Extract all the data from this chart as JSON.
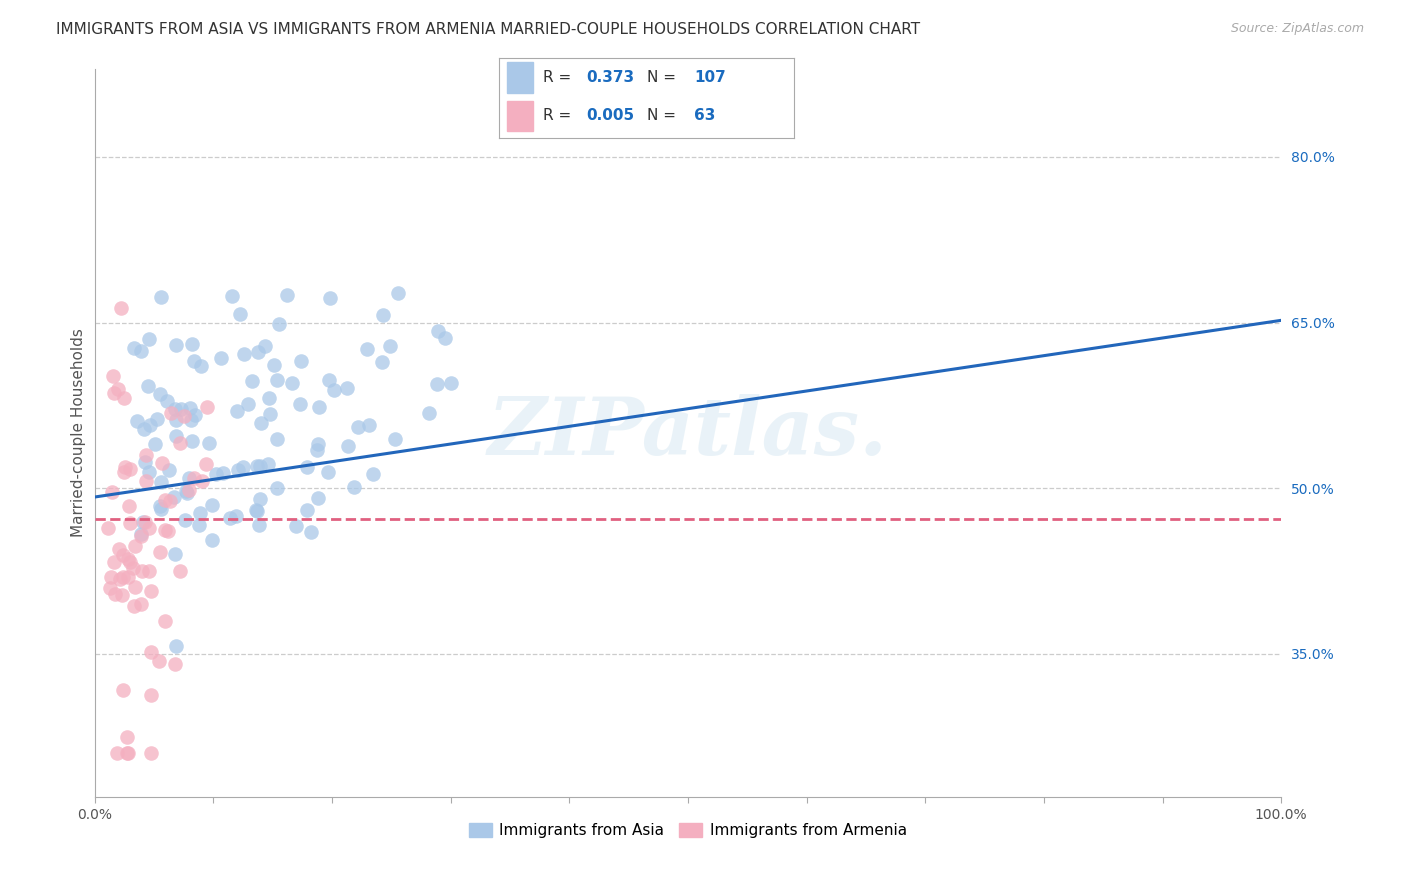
{
  "title": "IMMIGRANTS FROM ASIA VS IMMIGRANTS FROM ARMENIA MARRIED-COUPLE HOUSEHOLDS CORRELATION CHART",
  "source": "Source: ZipAtlas.com",
  "ylabel": "Married-couple Households",
  "series1_label": "Immigrants from Asia",
  "series1_color": "#aac8e8",
  "series1_edge_color": "#aac8e8",
  "series2_label": "Immigrants from Armenia",
  "series2_color": "#f4afc0",
  "series2_edge_color": "#f4afc0",
  "series1_R": "0.373",
  "series1_N": "107",
  "series2_R": "0.005",
  "series2_N": "63",
  "xlim": [
    0.0,
    1.0
  ],
  "ylim": [
    0.22,
    0.88
  ],
  "yticks_right": [
    0.35,
    0.5,
    0.65,
    0.8
  ],
  "ytick_labels_right": [
    "35.0%",
    "50.0%",
    "65.0%",
    "80.0%"
  ],
  "xtick_vals": [
    0.0,
    0.1,
    0.2,
    0.3,
    0.4,
    0.5,
    0.6,
    0.7,
    0.8,
    0.9,
    1.0
  ],
  "xtick_labels": [
    "0.0%",
    "",
    "",
    "",
    "",
    "",
    "",
    "",
    "",
    "",
    "100.0%"
  ],
  "watermark": "ZIPatlas.",
  "background_color": "#ffffff",
  "grid_color": "#cccccc",
  "title_fontsize": 11,
  "axis_label_fontsize": 11,
  "tick_fontsize": 10,
  "legend_color": "#1a6bbf",
  "line1_color": "#2266bb",
  "line2_color": "#e06080",
  "line1_start_y": 0.492,
  "line1_end_y": 0.652,
  "line2_start_y": 0.472,
  "line2_end_y": 0.472
}
